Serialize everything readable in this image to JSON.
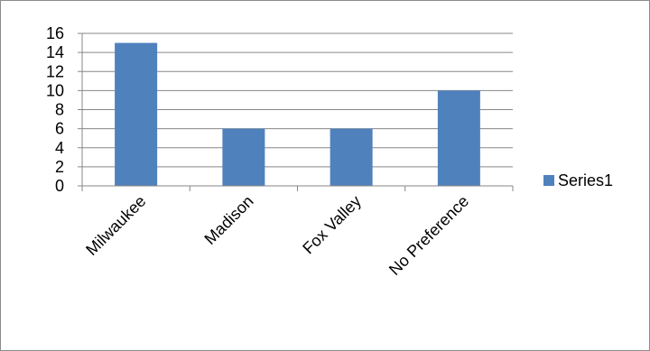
{
  "chart_data": {
    "type": "bar",
    "categories": [
      "Milwaukee",
      "Madison",
      "Fox Valley",
      "No Preference"
    ],
    "series": [
      {
        "name": "Series1",
        "values": [
          15,
          6,
          6,
          10
        ]
      }
    ],
    "yticks": [
      0,
      2,
      4,
      6,
      8,
      10,
      12,
      14,
      16
    ],
    "ylim": [
      0,
      16
    ],
    "grid": true,
    "legend": "right",
    "bar_color": "#4f81bd",
    "grid_color": "#878787"
  }
}
